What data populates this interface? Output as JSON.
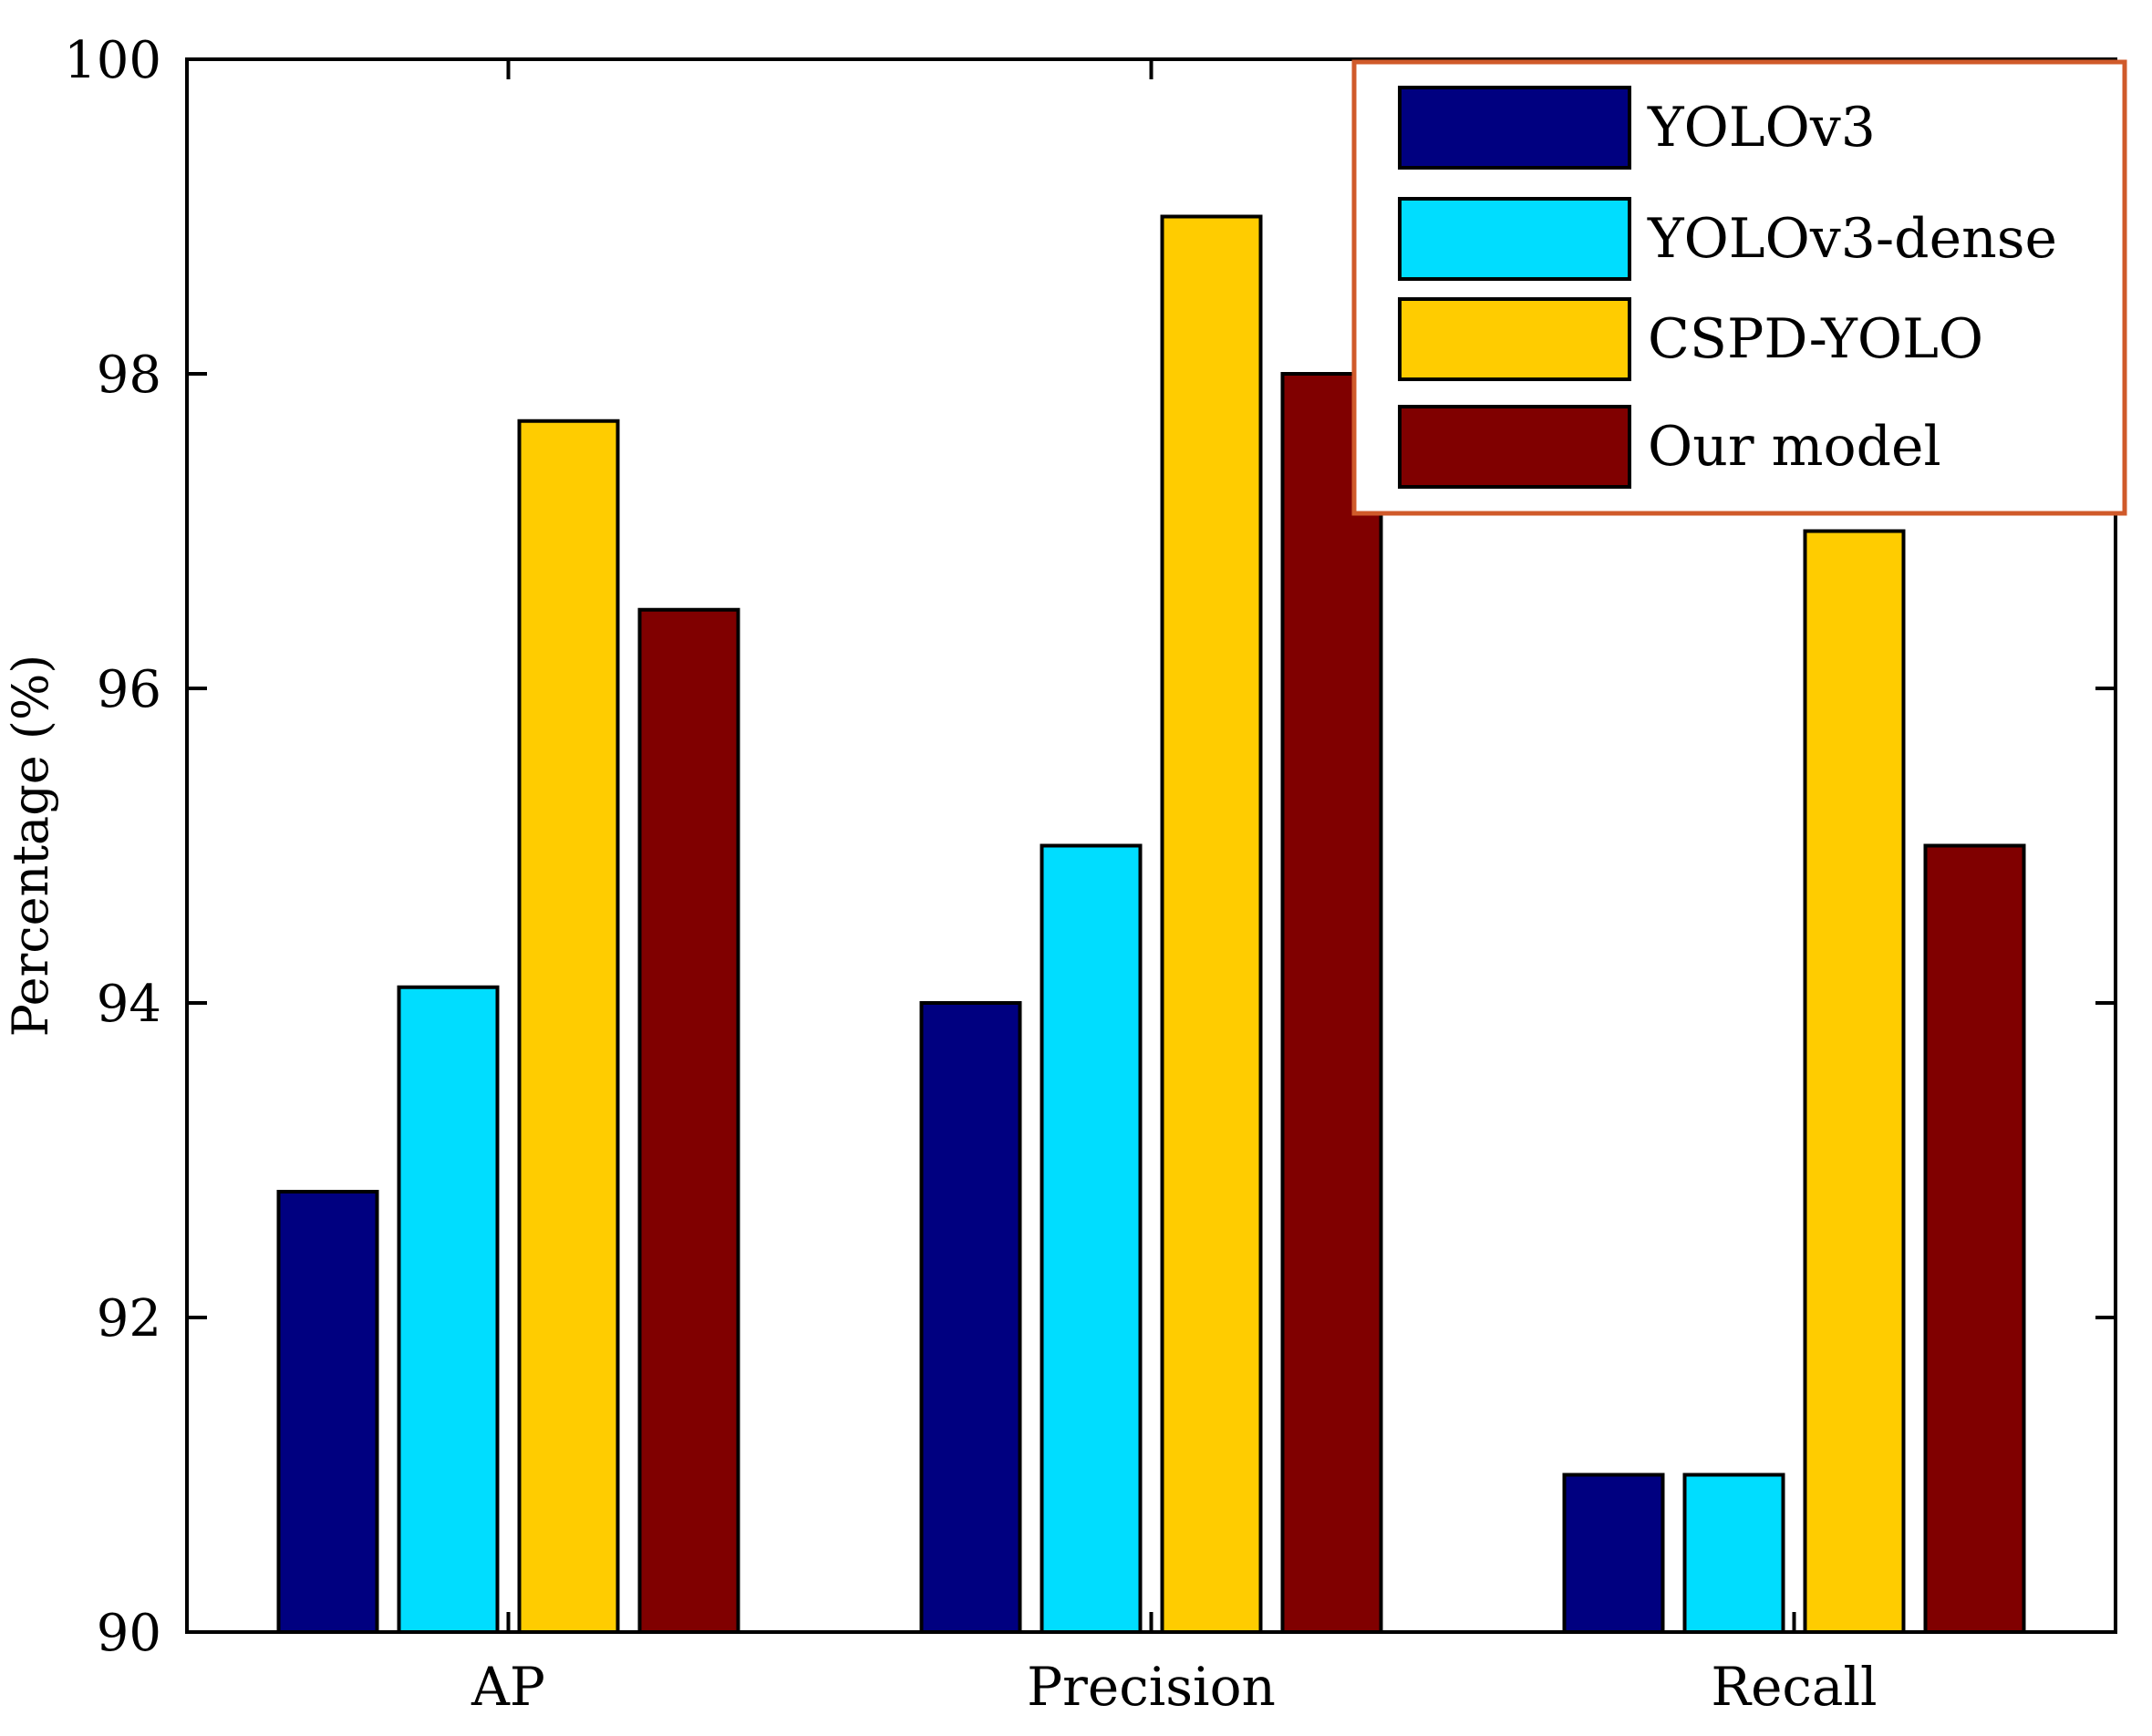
{
  "chart_data": {
    "type": "bar",
    "title": "",
    "xlabel": "",
    "ylabel": "Percentage (%)",
    "ylim": [
      90,
      100
    ],
    "yticks": [
      "90",
      "92",
      "94",
      "96",
      "98",
      "100"
    ],
    "ytick_values": [
      90,
      92,
      94,
      96,
      98,
      100
    ],
    "categories": [
      "AP",
      "Precision",
      "Recall"
    ],
    "series": [
      {
        "name": "YOLOv3",
        "color": "#000080",
        "values": [
          92.8,
          94.0,
          91.0
        ]
      },
      {
        "name": "YOLOv3-dense",
        "color": "#00DDFF",
        "values": [
          94.1,
          95.0,
          91.0
        ]
      },
      {
        "name": "CSPD-YOLO",
        "color": "#FFCC00",
        "values": [
          97.7,
          99.0,
          97.0
        ]
      },
      {
        "name": "Our model",
        "color": "#800000",
        "values": [
          96.5,
          98.0,
          95.0
        ]
      }
    ],
    "legend_position": "top-right",
    "legend_border_color": "#D05A2A",
    "grid": false
  }
}
